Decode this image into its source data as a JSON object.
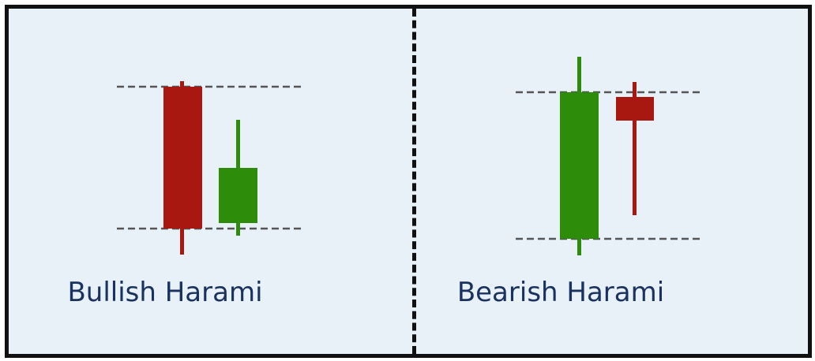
{
  "colors": {
    "bearish": "#a81810",
    "bullish": "#2d8c0a",
    "border": "#111111",
    "background": "#e8f0f8",
    "caption": "#1a3260",
    "guide": "#555555"
  },
  "panels": [
    {
      "caption": "Bullish Harami",
      "candles": [
        {
          "direction": "bearish",
          "color_key": "bearish"
        },
        {
          "direction": "bullish",
          "color_key": "bullish"
        }
      ]
    },
    {
      "caption": "Bearish Harami",
      "candles": [
        {
          "direction": "bullish",
          "color_key": "bullish"
        },
        {
          "direction": "bearish",
          "color_key": "bearish"
        }
      ]
    }
  ]
}
